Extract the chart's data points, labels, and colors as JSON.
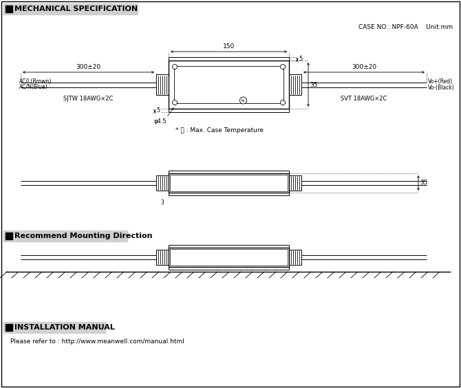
{
  "title_mech": "MECHANICAL SPECIFICATION",
  "case_no": "CASE NO.: NPF-60A    Unit:mm",
  "title_mount": "Recommend Mounting Direction",
  "title_install": "INSTALLATION MANUAL",
  "install_text": "Please refer to : http://www.meanwell.com/manual.html",
  "bg_color": "#ffffff",
  "line_color": "#000000",
  "label_300_20": "300±20",
  "label_150": "150",
  "label_35_top": "35",
  "label_35_side": "35",
  "label_5_top": "5",
  "label_5_bot": "5",
  "label_45": "φ4.5",
  "label_sjtw": "SJTW 18AWG×2C",
  "label_svt": "SVT 18AWG×2C",
  "label_vo_red": "Vo+(Red)",
  "label_vo_black": "Vo-(Black)",
  "label_tc_note": "* Ⓣ : Max. Case Temperature"
}
